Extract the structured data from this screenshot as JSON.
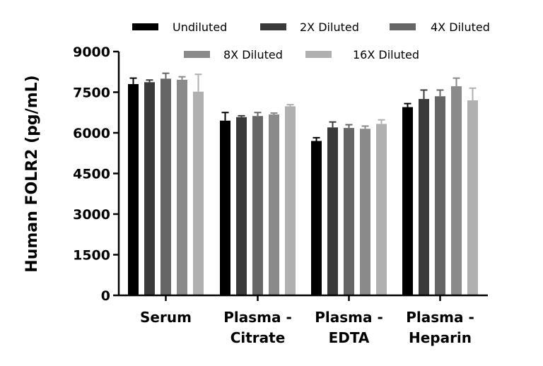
{
  "chart_data": {
    "type": "bar",
    "title": "",
    "xlabel": "",
    "ylabel": "Human FOLR2 (pg/mL)",
    "ylim": [
      0,
      9000
    ],
    "yticks": [
      0,
      1500,
      3000,
      4500,
      6000,
      7500,
      9000
    ],
    "grid": false,
    "legend_position": "top",
    "categories": [
      [
        "Serum"
      ],
      [
        "Plasma -",
        "Citrate"
      ],
      [
        "Plasma -",
        "EDTA"
      ],
      [
        "Plasma -",
        "Heparin"
      ]
    ],
    "series": [
      {
        "name": "Undiluted",
        "color": "#000000",
        "values": [
          7800,
          6450,
          5700,
          6950
        ],
        "errors": [
          220,
          300,
          120,
          130
        ]
      },
      {
        "name": "2X Diluted",
        "color": "#3a3a3a",
        "values": [
          7870,
          6580,
          6200,
          7250
        ],
        "errors": [
          80,
          50,
          200,
          330
        ]
      },
      {
        "name": "4X Diluted",
        "color": "#666666",
        "values": [
          8000,
          6620,
          6180,
          7350
        ],
        "errors": [
          200,
          130,
          120,
          230
        ]
      },
      {
        "name": "8X Diluted",
        "color": "#8a8a8a",
        "values": [
          7960,
          6680,
          6150,
          7720
        ],
        "errors": [
          110,
          50,
          100,
          300
        ]
      },
      {
        "name": "16X Diluted",
        "color": "#b0b0b0",
        "values": [
          7520,
          6980,
          6330,
          7200
        ],
        "errors": [
          640,
          60,
          150,
          450
        ]
      }
    ]
  }
}
